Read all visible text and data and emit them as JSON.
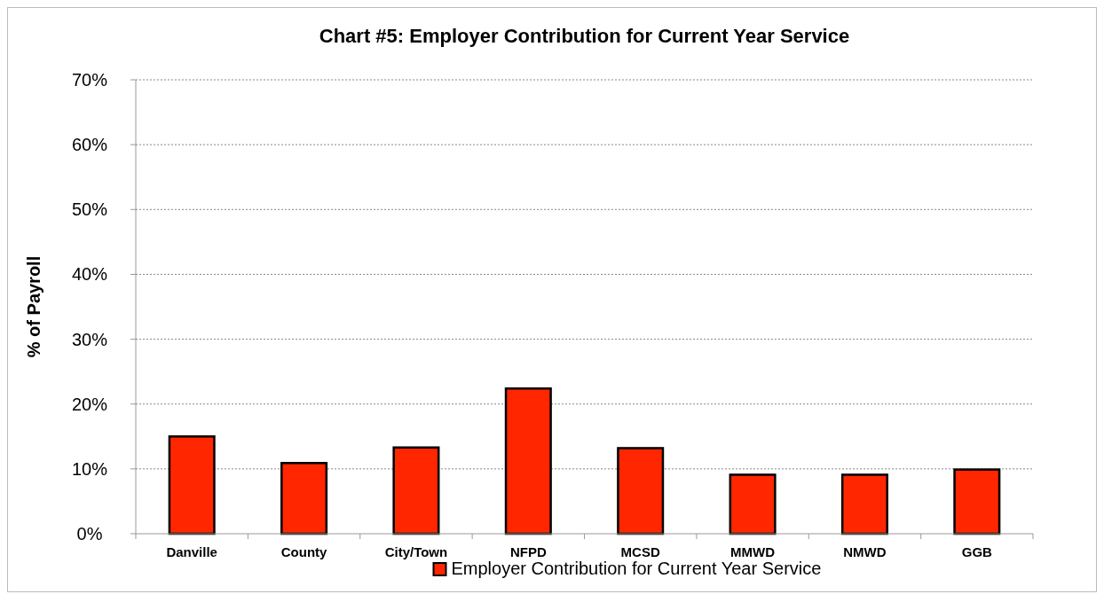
{
  "chart_data": {
    "type": "bar",
    "title": "Chart #5:  Employer Contribution for Current Year Service",
    "ylabel": "% of Payroll",
    "categories": [
      "Danville",
      "County",
      "City/Town",
      "NFPD",
      "MCSD",
      "MMWD",
      "NMWD",
      "GGB"
    ],
    "series": [
      {
        "name": "Employer Contribution for Current Year Service",
        "color": "#ff2600",
        "values": [
          15.0,
          10.9,
          13.3,
          22.4,
          13.2,
          9.1,
          9.1,
          9.9
        ]
      }
    ],
    "ylim": [
      0,
      70
    ],
    "yticks": [
      {
        "value": 0,
        "label": "0%"
      },
      {
        "value": 10,
        "label": "10%"
      },
      {
        "value": 20,
        "label": "20%"
      },
      {
        "value": 30,
        "label": "30%"
      },
      {
        "value": 40,
        "label": "40%"
      },
      {
        "value": 50,
        "label": "50%"
      },
      {
        "value": 60,
        "label": "60%"
      },
      {
        "value": 70,
        "label": "70%"
      }
    ],
    "grid": "y",
    "legend": "bottom"
  }
}
